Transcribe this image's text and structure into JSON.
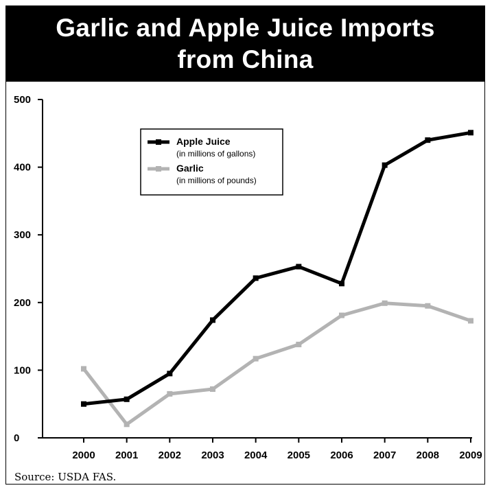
{
  "chart_data": {
    "type": "line",
    "title_lines": [
      "Garlic and Apple Juice Imports",
      "from China"
    ],
    "x": [
      "2000",
      "2001",
      "2002",
      "2003",
      "2004",
      "2005",
      "2006",
      "2007",
      "2008",
      "2009"
    ],
    "series": [
      {
        "name": "Apple Juice",
        "unit_note": "(in millions of gallons)",
        "color": "#000000",
        "values": [
          50,
          57,
          95,
          174,
          236,
          253,
          228,
          403,
          440,
          451
        ]
      },
      {
        "name": "Garlic",
        "unit_note": "(in millions of pounds)",
        "color": "#b3b3b3",
        "values": [
          102,
          20,
          65,
          72,
          117,
          138,
          181,
          199,
          195,
          173
        ]
      }
    ],
    "ylim": [
      0,
      500
    ],
    "yticks": [
      0,
      100,
      200,
      300,
      400,
      500
    ],
    "grid": false,
    "legend_position": "upper-left"
  },
  "source": "Source: USDA FAS."
}
